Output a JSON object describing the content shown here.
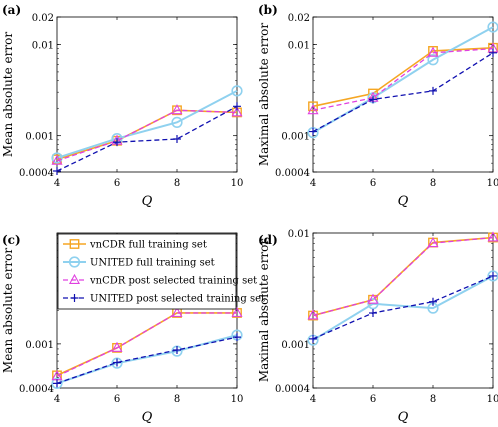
{
  "styles": {
    "vnCDR full training set": {
      "color": "#f5a623",
      "dash": "",
      "marker": "square",
      "width": 1.6
    },
    "UNITED full training set": {
      "color": "#8fd1ef",
      "dash": "",
      "marker": "circle",
      "width": 2.0
    },
    "vnCDR post selected training set": {
      "color": "#e040e0",
      "dash": "5,3",
      "marker": "triangle",
      "width": 1.3
    },
    "UNITED post selected training set": {
      "color": "#1010b0",
      "dash": "5,3",
      "marker": "plus",
      "width": 1.3
    }
  },
  "legend": {
    "panel": "c",
    "entries": [
      "vnCDR full training set",
      "UNITED full training set",
      "vnCDR post selected training set",
      "UNITED post selected training set"
    ]
  },
  "chart_data": [
    {
      "panel": "(a)",
      "type": "line",
      "ylabel": "Mean absolute error",
      "xlabel": "Q",
      "yscale": "log",
      "xlim": [
        4,
        10
      ],
      "ylim": [
        0.0004,
        0.02
      ],
      "xticks": [
        4,
        6,
        8,
        10
      ],
      "yticks": [
        {
          "v": 0.0004,
          "label": "0.0004"
        },
        {
          "v": 0.001,
          "label": "0.001"
        },
        {
          "v": 0.01,
          "label": "0.01"
        },
        {
          "v": 0.02,
          "label": "0.02"
        }
      ],
      "x": [
        4,
        6,
        8,
        10
      ],
      "series": [
        {
          "name": "vnCDR full training set",
          "values": [
            0.00055,
            0.00088,
            0.0019,
            0.0018
          ]
        },
        {
          "name": "UNITED full training set",
          "values": [
            0.00057,
            0.00093,
            0.0014,
            0.0031
          ]
        },
        {
          "name": "vnCDR post selected training set",
          "values": [
            0.00053,
            0.00088,
            0.0019,
            0.0018
          ]
        },
        {
          "name": "UNITED post selected training set",
          "values": [
            0.00041,
            0.00085,
            0.00092,
            0.0021
          ]
        }
      ]
    },
    {
      "panel": "(b)",
      "type": "line",
      "ylabel": "Maximal absolute error",
      "xlabel": "Q",
      "yscale": "log",
      "xlim": [
        4,
        10
      ],
      "ylim": [
        0.0004,
        0.02
      ],
      "xticks": [
        4,
        6,
        8,
        10
      ],
      "yticks": [
        {
          "v": 0.0004,
          "label": "0.0004"
        },
        {
          "v": 0.001,
          "label": "0.001"
        },
        {
          "v": 0.01,
          "label": "0.01"
        },
        {
          "v": 0.02,
          "label": "0.02"
        }
      ],
      "x": [
        4,
        6,
        8,
        10
      ],
      "series": [
        {
          "name": "vnCDR full training set",
          "values": [
            0.0021,
            0.0029,
            0.0085,
            0.0092
          ]
        },
        {
          "name": "UNITED full training set",
          "values": [
            0.00108,
            0.0026,
            0.0068,
            0.0155
          ]
        },
        {
          "name": "vnCDR post selected training set",
          "values": [
            0.0019,
            0.0026,
            0.0081,
            0.009
          ]
        },
        {
          "name": "UNITED post selected training set",
          "values": [
            0.00111,
            0.0025,
            0.0031,
            0.0081
          ]
        }
      ]
    },
    {
      "panel": "(c)",
      "type": "line",
      "ylabel": "Mean absolute error",
      "xlabel": "Q",
      "yscale": "log",
      "xlim": [
        4,
        10
      ],
      "ylim": [
        0.0004,
        0.01
      ],
      "xticks": [
        4,
        6,
        8,
        10
      ],
      "yticks": [
        {
          "v": 0.0004,
          "label": "0.0004"
        },
        {
          "v": 0.001,
          "label": "0.001"
        }
      ],
      "x": [
        4,
        6,
        8,
        10
      ],
      "series": [
        {
          "name": "vnCDR full training set",
          "values": [
            0.00052,
            0.00092,
            0.0019,
            0.0019
          ]
        },
        {
          "name": "UNITED full training set",
          "values": [
            0.00044,
            0.00067,
            0.00086,
            0.0012
          ]
        },
        {
          "name": "vnCDR post selected training set",
          "values": [
            0.00051,
            0.00092,
            0.0019,
            0.0019
          ]
        },
        {
          "name": "UNITED post selected training set",
          "values": [
            0.00044,
            0.00068,
            0.00088,
            0.00115
          ]
        }
      ]
    },
    {
      "panel": "(d)",
      "type": "line",
      "ylabel": "Maximal absolute error",
      "xlabel": "Q",
      "yscale": "log",
      "xlim": [
        4,
        10
      ],
      "ylim": [
        0.0004,
        0.01
      ],
      "xticks": [
        4,
        6,
        8,
        10
      ],
      "yticks": [
        {
          "v": 0.0004,
          "label": "0.0004"
        },
        {
          "v": 0.001,
          "label": "0.001"
        },
        {
          "v": 0.01,
          "label": "0.01"
        }
      ],
      "x": [
        4,
        6,
        8,
        10
      ],
      "series": [
        {
          "name": "vnCDR full training set",
          "values": [
            0.0018,
            0.0025,
            0.0082,
            0.0091
          ]
        },
        {
          "name": "UNITED full training set",
          "values": [
            0.00108,
            0.0023,
            0.0021,
            0.0041
          ]
        },
        {
          "name": "vnCDR post selected training set",
          "values": [
            0.0018,
            0.0025,
            0.0081,
            0.0091
          ]
        },
        {
          "name": "UNITED post selected training set",
          "values": [
            0.00111,
            0.0019,
            0.0024,
            0.0041
          ]
        }
      ]
    }
  ]
}
